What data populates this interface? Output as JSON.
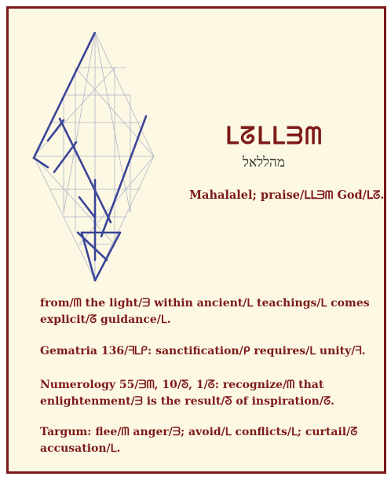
{
  "entry": {
    "paleo_script": "ᒪᘔᒪᒪᗱᗰ",
    "hebrew": "מהללאל",
    "gloss": "Mahalalel; praise/ᒪᒪᗱᗰ God/ᒪᘔ."
  },
  "paragraphs": [
    "from/ᗰ the light/ᗱ within ancient/ᒪ teachings/ᒪ comes explicit/ᘔ guidance/ᒪ.",
    "Gematria 136/ᖷᒪᑭ: sanctification/ᑭ requires/ᒪ unity/ᖷ.",
    "Numerology 55/ᗱᗰ, 10/ᘕ, 1/ᘔ: recognize/ᗰ that enlightenment/ᗱ is the result/ᘕ of inspiration/ᘔ.",
    "Targum: flee/ᗰ anger/ᗱ; avoid/ᒪ conflicts/ᒪ; curtail/ᘔ accusation/ᒪ."
  ],
  "colors": {
    "border": "#7d1a1a",
    "background": "#fdf8e3",
    "text": "#7d1a1a",
    "grid": "#b0b4c8",
    "stroke": "#3a4598"
  }
}
